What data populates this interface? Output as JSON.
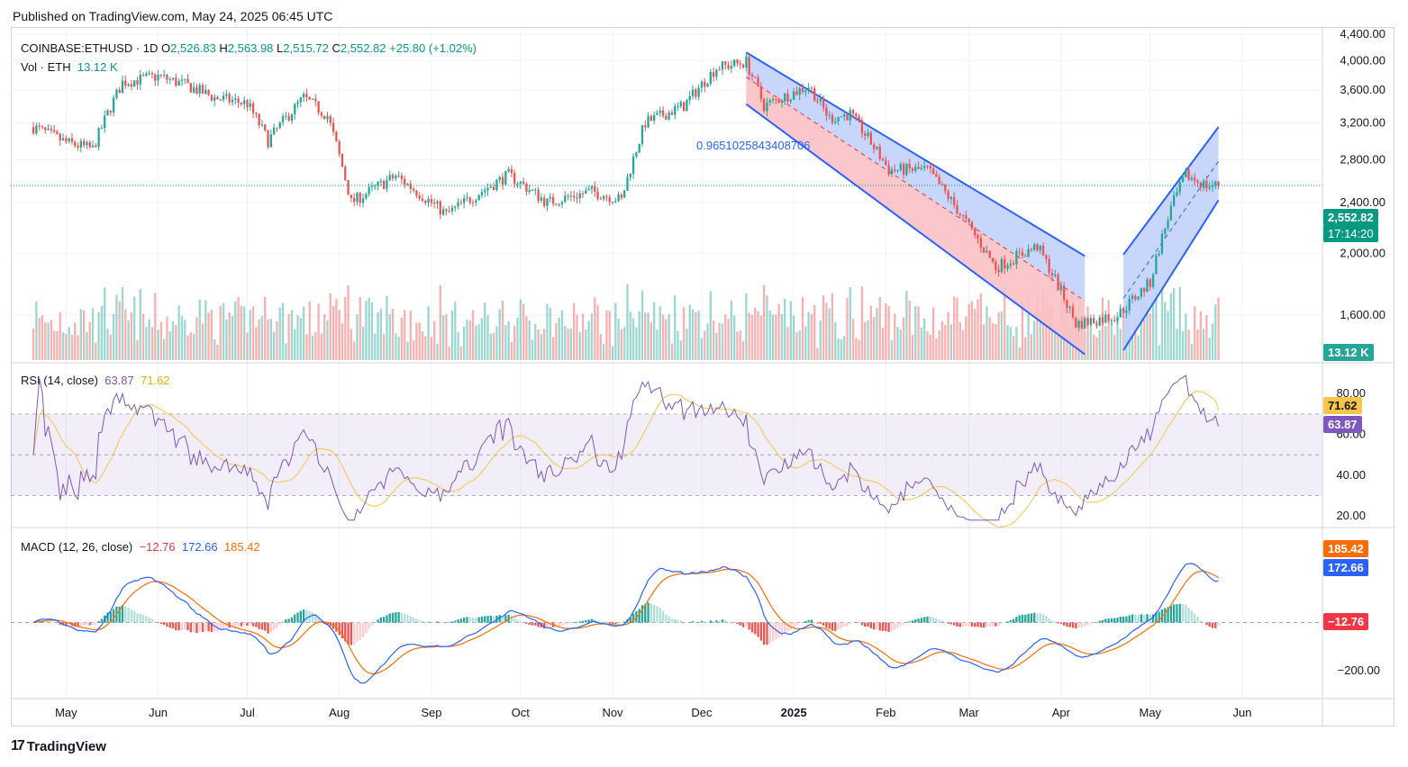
{
  "header": {
    "published": "Published on TradingView.com, May 24, 2025 06:45 UTC"
  },
  "footer": {
    "brand": "TradingView"
  },
  "colors": {
    "up": "#26a69a",
    "down": "#ef5350",
    "up_text": "#089981",
    "rsi": "#7e57c2",
    "rsi_ma": "#f7c548",
    "macd": "#2962ff",
    "signal": "#ff6d00",
    "channel_blue": "#2962ff",
    "channel_fill_blue": "#c3d2fb",
    "channel_fill_red": "#fbc1c5"
  },
  "price_legend": {
    "symbol": "COINBASE:ETHUSD · 1D",
    "o_label": "O",
    "open": "2,526.83",
    "h_label": "H",
    "high": "2,563.98",
    "l_label": "L",
    "low": "2,515.72",
    "c_label": "C",
    "close": "2,552.82",
    "change": "+25.80 (+1.02%)",
    "vol_label": "Vol · ETH",
    "vol": "13.12 K"
  },
  "rsi_legend": {
    "label": "RSI (14, close)",
    "rsi": "63.87",
    "ma": "71.62"
  },
  "macd_legend": {
    "label": "MACD (12, 26, close)",
    "hist": "−12.76",
    "macd": "172.66",
    "signal": "185.42"
  },
  "tags": {
    "price": "2,552.82",
    "countdown": "17:14:20",
    "volume": "13.12 K",
    "rsi_ma": "71.62",
    "rsi": "63.87",
    "signal": "185.42",
    "macd": "172.66",
    "hist": "−12.76"
  },
  "annotation": "0.9651025843408706",
  "chart_data": [
    {
      "type": "candlestick",
      "title": "COINBASE:ETHUSD · 1D",
      "x_ticks": [
        "May",
        "Jun",
        "Jul",
        "Aug",
        "Sep",
        "Oct",
        "Nov",
        "Dec",
        "2025",
        "Feb",
        "Mar",
        "Apr",
        "May",
        "Jun"
      ],
      "y_ticks": [
        "1,600.00",
        "2,000.00",
        "2,400.00",
        "2,800.00",
        "3,200.00",
        "3,600.00",
        "4,000.00",
        "4,400.00"
      ],
      "y_tick_values": [
        1600,
        2000,
        2400,
        2800,
        3200,
        3600,
        4000,
        4400
      ],
      "ylim": [
        1370,
        4400
      ],
      "last_close": 2552.82,
      "monthly_closes": [
        {
          "x": "2024-04-20",
          "y": 3150
        },
        {
          "x": "2024-05-01",
          "y": 2980
        },
        {
          "x": "2024-05-10",
          "y": 2910
        },
        {
          "x": "2024-05-20",
          "y": 3700
        },
        {
          "x": "2024-06-01",
          "y": 3780
        },
        {
          "x": "2024-06-10",
          "y": 3670
        },
        {
          "x": "2024-06-20",
          "y": 3500
        },
        {
          "x": "2024-07-01",
          "y": 3430
        },
        {
          "x": "2024-07-08",
          "y": 3000
        },
        {
          "x": "2024-07-20",
          "y": 3500
        },
        {
          "x": "2024-07-28",
          "y": 3280
        },
        {
          "x": "2024-08-05",
          "y": 2400
        },
        {
          "x": "2024-08-20",
          "y": 2640
        },
        {
          "x": "2024-09-06",
          "y": 2300
        },
        {
          "x": "2024-09-27",
          "y": 2650
        },
        {
          "x": "2024-10-10",
          "y": 2400
        },
        {
          "x": "2024-10-25",
          "y": 2500
        },
        {
          "x": "2024-11-04",
          "y": 2420
        },
        {
          "x": "2024-11-12",
          "y": 3200
        },
        {
          "x": "2024-11-25",
          "y": 3400
        },
        {
          "x": "2024-12-06",
          "y": 3900
        },
        {
          "x": "2024-12-16",
          "y": 3980
        },
        {
          "x": "2024-12-22",
          "y": 3400
        },
        {
          "x": "2025-01-06",
          "y": 3650
        },
        {
          "x": "2025-01-13",
          "y": 3250
        },
        {
          "x": "2025-01-20",
          "y": 3300
        },
        {
          "x": "2025-02-02",
          "y": 2700
        },
        {
          "x": "2025-02-15",
          "y": 2700
        },
        {
          "x": "2025-03-01",
          "y": 2200
        },
        {
          "x": "2025-03-10",
          "y": 1900
        },
        {
          "x": "2025-03-24",
          "y": 2050
        },
        {
          "x": "2025-04-06",
          "y": 1550
        },
        {
          "x": "2025-04-20",
          "y": 1600
        },
        {
          "x": "2025-05-01",
          "y": 1800
        },
        {
          "x": "2025-05-08",
          "y": 2350
        },
        {
          "x": "2025-05-13",
          "y": 2650
        },
        {
          "x": "2025-05-20",
          "y": 2550
        },
        {
          "x": "2025-05-24",
          "y": 2552.82
        }
      ],
      "volume_last": "13.12 K"
    },
    {
      "type": "line",
      "title": "RSI (14, close)",
      "y_ticks": [
        "20.00",
        "40.00",
        "60.00",
        "80.00"
      ],
      "y_tick_values": [
        20,
        40,
        60,
        80
      ],
      "ylim": [
        17,
        92
      ],
      "band": [
        30,
        70
      ],
      "midline": 50,
      "series": [
        {
          "name": "RSI",
          "last": 63.87
        },
        {
          "name": "MA",
          "last": 71.62
        }
      ]
    },
    {
      "type": "line",
      "title": "MACD (12, 26, close)",
      "y_ticks": [
        "−200.00"
      ],
      "y_tick_values": [
        -200
      ],
      "ylim": [
        -300,
        360
      ],
      "series": [
        {
          "name": "MACD",
          "last": 172.66
        },
        {
          "name": "Signal",
          "last": 185.42
        },
        {
          "name": "Histogram",
          "last": -12.76
        }
      ]
    }
  ]
}
